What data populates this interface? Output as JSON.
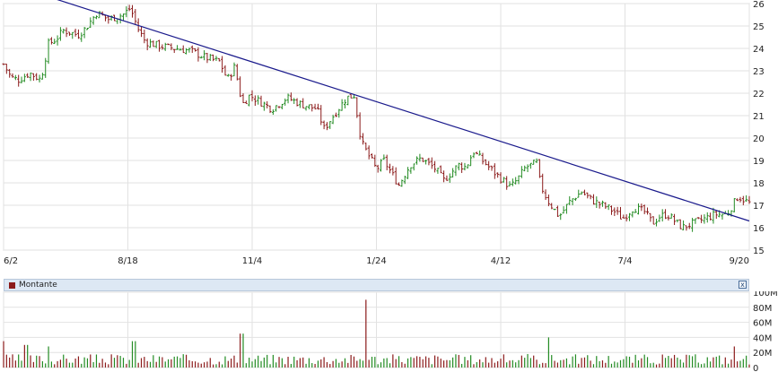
{
  "chart_data": [
    {
      "type": "candlestick",
      "x_tick_labels": [
        "6/2",
        "8/18",
        "11/4",
        "1/24",
        "4/12",
        "7/4",
        "9/20"
      ],
      "y_tick_labels": [
        "15",
        "16",
        "17",
        "18",
        "19",
        "20",
        "21",
        "22",
        "23",
        "24",
        "25",
        "26"
      ],
      "ylim": [
        15,
        26
      ],
      "grid": true,
      "up_color": "#228b22",
      "down_color": "#8b1a1a",
      "trendline": {
        "color": "#1a1a8c",
        "start": [
          0.07,
          26.2
        ],
        "end": [
          1.0,
          16.3
        ]
      },
      "series": [
        {
          "x": 0.0,
          "close": 23.3
        },
        {
          "x": 0.01,
          "close": 22.7
        },
        {
          "x": 0.02,
          "close": 22.6
        },
        {
          "x": 0.035,
          "close": 22.9
        },
        {
          "x": 0.05,
          "close": 22.6
        },
        {
          "x": 0.06,
          "close": 24.2
        },
        {
          "x": 0.07,
          "close": 24.4
        },
        {
          "x": 0.08,
          "close": 24.8
        },
        {
          "x": 0.1,
          "close": 24.6
        },
        {
          "x": 0.11,
          "close": 24.9
        },
        {
          "x": 0.125,
          "close": 25.6
        },
        {
          "x": 0.14,
          "close": 25.3
        },
        {
          "x": 0.16,
          "close": 25.5
        },
        {
          "x": 0.17,
          "close": 25.8
        },
        {
          "x": 0.18,
          "close": 24.9
        },
        {
          "x": 0.19,
          "close": 24.3
        },
        {
          "x": 0.21,
          "close": 24.1
        },
        {
          "x": 0.23,
          "close": 24.0
        },
        {
          "x": 0.25,
          "close": 23.9
        },
        {
          "x": 0.27,
          "close": 23.6
        },
        {
          "x": 0.29,
          "close": 23.4
        },
        {
          "x": 0.3,
          "close": 22.6
        },
        {
          "x": 0.31,
          "close": 23.2
        },
        {
          "x": 0.32,
          "close": 21.5
        },
        {
          "x": 0.33,
          "close": 21.9
        },
        {
          "x": 0.35,
          "close": 21.5
        },
        {
          "x": 0.36,
          "close": 21.3
        },
        {
          "x": 0.38,
          "close": 21.8
        },
        {
          "x": 0.4,
          "close": 21.5
        },
        {
          "x": 0.42,
          "close": 21.3
        },
        {
          "x": 0.43,
          "close": 20.4
        },
        {
          "x": 0.44,
          "close": 20.9
        },
        {
          "x": 0.46,
          "close": 21.8
        },
        {
          "x": 0.47,
          "close": 21.9
        },
        {
          "x": 0.48,
          "close": 19.8
        },
        {
          "x": 0.49,
          "close": 19.2
        },
        {
          "x": 0.5,
          "close": 18.6
        },
        {
          "x": 0.51,
          "close": 19.0
        },
        {
          "x": 0.53,
          "close": 17.9
        },
        {
          "x": 0.545,
          "close": 18.8
        },
        {
          "x": 0.56,
          "close": 19.1
        },
        {
          "x": 0.58,
          "close": 18.6
        },
        {
          "x": 0.59,
          "close": 18.1
        },
        {
          "x": 0.61,
          "close": 18.8
        },
        {
          "x": 0.62,
          "close": 18.7
        },
        {
          "x": 0.63,
          "close": 19.4
        },
        {
          "x": 0.645,
          "close": 18.9
        },
        {
          "x": 0.66,
          "close": 18.4
        },
        {
          "x": 0.68,
          "close": 17.8
        },
        {
          "x": 0.69,
          "close": 18.2
        },
        {
          "x": 0.7,
          "close": 18.7
        },
        {
          "x": 0.715,
          "close": 18.9
        },
        {
          "x": 0.72,
          "close": 17.9
        },
        {
          "x": 0.73,
          "close": 17.2
        },
        {
          "x": 0.745,
          "close": 16.5
        },
        {
          "x": 0.76,
          "close": 17.2
        },
        {
          "x": 0.775,
          "close": 17.6
        },
        {
          "x": 0.79,
          "close": 17.2
        },
        {
          "x": 0.81,
          "close": 16.9
        },
        {
          "x": 0.82,
          "close": 16.7
        },
        {
          "x": 0.83,
          "close": 16.4
        },
        {
          "x": 0.845,
          "close": 16.9
        },
        {
          "x": 0.86,
          "close": 16.7
        },
        {
          "x": 0.87,
          "close": 16.2
        },
        {
          "x": 0.88,
          "close": 16.5
        },
        {
          "x": 0.89,
          "close": 16.6
        },
        {
          "x": 0.9,
          "close": 16.3
        },
        {
          "x": 0.91,
          "close": 16.0
        },
        {
          "x": 0.925,
          "close": 16.2
        },
        {
          "x": 0.94,
          "close": 16.4
        },
        {
          "x": 0.955,
          "close": 16.6
        },
        {
          "x": 0.97,
          "close": 16.6
        },
        {
          "x": 0.985,
          "close": 17.4
        },
        {
          "x": 1.0,
          "close": 17.1
        }
      ]
    },
    {
      "type": "bar",
      "legend": "Montante",
      "y_tick_labels": [
        "0",
        "20M",
        "40M",
        "60M",
        "80M",
        "100M"
      ],
      "ylim": [
        0,
        100
      ],
      "grid": true,
      "spikes": [
        {
          "x": 0.0,
          "value": 35
        },
        {
          "x": 0.03,
          "value": 30
        },
        {
          "x": 0.06,
          "value": 28
        },
        {
          "x": 0.175,
          "value": 35
        },
        {
          "x": 0.32,
          "value": 45
        },
        {
          "x": 0.485,
          "value": 90
        },
        {
          "x": 0.73,
          "value": 40
        },
        {
          "x": 0.98,
          "value": 28
        }
      ]
    }
  ],
  "legend_panel": {
    "label": "Montante",
    "close_glyph": "x"
  }
}
